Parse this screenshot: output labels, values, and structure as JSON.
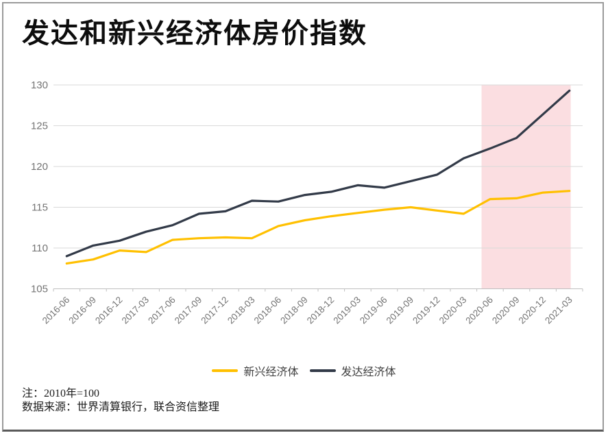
{
  "window": {
    "background": "#ffffff",
    "border_color": "#9a9a9a"
  },
  "title": "发达和新兴经济体房价指数",
  "footer": {
    "note": "注：2010年=100",
    "source": "数据来源：世界清算银行，联合资信整理"
  },
  "chart_data": {
    "type": "line",
    "title": "发达和新兴经济体房价指数",
    "categories": [
      "2016-06",
      "2016-09",
      "2016-12",
      "2017-03",
      "2017-06",
      "2017-09",
      "2017-12",
      "2018-03",
      "2018-06",
      "2018-09",
      "2018-12",
      "2019-03",
      "2019-06",
      "2019-09",
      "2019-12",
      "2020-03",
      "2020-06",
      "2020-09",
      "2020-12",
      "2021-03"
    ],
    "series": [
      {
        "name": "新兴经济体",
        "color": "#FFC000",
        "values": [
          108.1,
          108.6,
          109.7,
          109.5,
          111.0,
          111.2,
          111.3,
          111.2,
          112.7,
          113.4,
          113.9,
          114.3,
          114.7,
          115.0,
          114.6,
          114.2,
          116.0,
          116.1,
          116.8,
          117.0
        ]
      },
      {
        "name": "发达经济体",
        "color": "#323A48",
        "values": [
          109.0,
          110.3,
          110.9,
          112.0,
          112.8,
          114.2,
          114.5,
          115.8,
          115.7,
          116.5,
          116.9,
          117.7,
          117.4,
          118.2,
          119.0,
          121.0,
          122.2,
          123.5,
          126.4,
          129.3
        ]
      }
    ],
    "xlabel": "",
    "ylabel": "",
    "ylim": [
      105,
      130
    ],
    "yticks": [
      105,
      110,
      115,
      120,
      125,
      130
    ],
    "grid": true,
    "legend_position": "bottom",
    "highlight_region": {
      "from": "2020-06",
      "to": "2021-03",
      "color": "#FBDEE1"
    },
    "gridline_color": "#D9D9D9",
    "axis_line_color": "#BFBFBF",
    "tick_label_color": "#737373"
  }
}
